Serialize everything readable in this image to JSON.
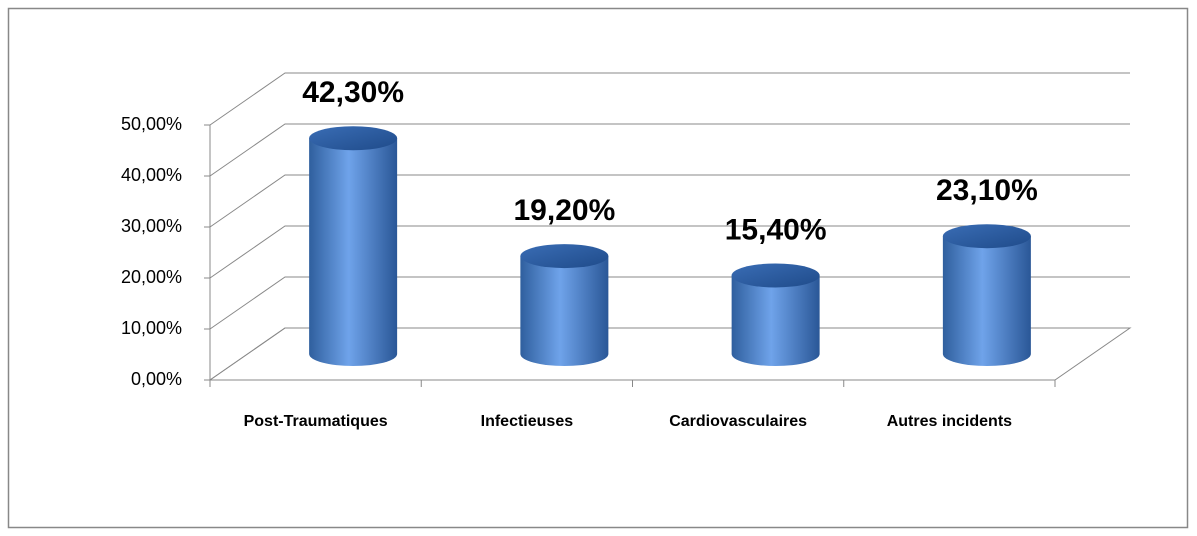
{
  "chart_data": {
    "type": "bar3d",
    "categories": [
      "Post-Traumatiques",
      "Infectieuses",
      "Cardiovasculaires",
      "Autres incidents"
    ],
    "values": [
      42.3,
      19.2,
      15.4,
      23.1
    ],
    "value_labels": [
      "42,30%",
      "19,20%",
      "15,40%",
      "23,10%"
    ],
    "color": "#4f81bd",
    "ylim": [
      0,
      50
    ],
    "yticks": [
      {
        "value": 0,
        "label": "0,00%"
      },
      {
        "value": 10,
        "label": "10,00%"
      },
      {
        "value": 20,
        "label": "20,00%"
      },
      {
        "value": 30,
        "label": "30,00%"
      },
      {
        "value": 40,
        "label": "40,00%"
      },
      {
        "value": 50,
        "label": "50,00%"
      }
    ],
    "grid": true
  }
}
